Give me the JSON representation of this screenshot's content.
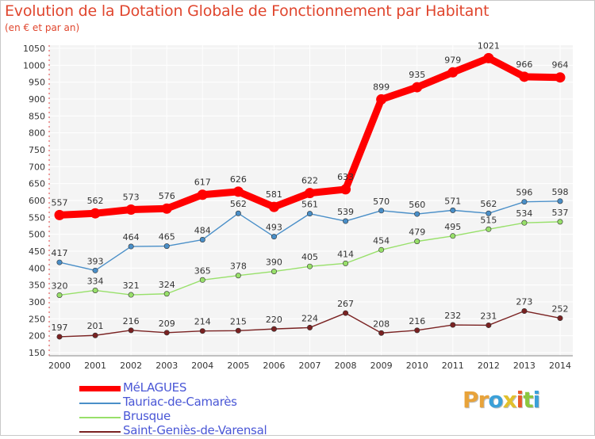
{
  "header": {
    "title": "Evolution de la Dotation Globale de Fonctionnement par Habitant",
    "subtitle": "(en € et par an)"
  },
  "logo": {
    "letters": [
      "P",
      "r",
      "o",
      "x",
      "i",
      "t",
      "i"
    ],
    "colors": [
      "#e8a33a",
      "#e8a33a",
      "#3ba0d8",
      "#e2c02c",
      "#e85a2a",
      "#8cc63f",
      "#3ba0d8"
    ]
  },
  "chart_data": {
    "type": "line",
    "x": [
      "2000",
      "2001",
      "2002",
      "2003",
      "2004",
      "2005",
      "2006",
      "2007",
      "2008",
      "2009",
      "2010",
      "2011",
      "2012",
      "2013",
      "2014"
    ],
    "ylim": [
      150,
      1050
    ],
    "yticks": [
      150,
      200,
      250,
      300,
      350,
      400,
      450,
      500,
      550,
      600,
      650,
      700,
      750,
      800,
      850,
      900,
      950,
      1000,
      1050
    ],
    "grid": true,
    "legend_position": "bottom-left",
    "series": [
      {
        "name": "MéLAGUES",
        "color": "#ff0000",
        "values": [
          557,
          562,
          573,
          576,
          617,
          626,
          581,
          622,
          633,
          899,
          935,
          979,
          1021,
          966,
          964
        ]
      },
      {
        "name": "Tauriac-de-Camarès",
        "color": "#4a8fc8",
        "values": [
          417,
          393,
          464,
          465,
          484,
          562,
          493,
          561,
          539,
          570,
          560,
          571,
          562,
          596,
          598
        ]
      },
      {
        "name": "Brusque",
        "color": "#98e06a",
        "values": [
          320,
          334,
          321,
          324,
          365,
          378,
          390,
          405,
          414,
          454,
          479,
          495,
          515,
          534,
          537
        ]
      },
      {
        "name": "Saint-Geniès-de-Varensal",
        "color": "#7a2222",
        "values": [
          197,
          201,
          216,
          209,
          214,
          215,
          220,
          224,
          267,
          208,
          216,
          232,
          231,
          273,
          252
        ]
      }
    ]
  }
}
